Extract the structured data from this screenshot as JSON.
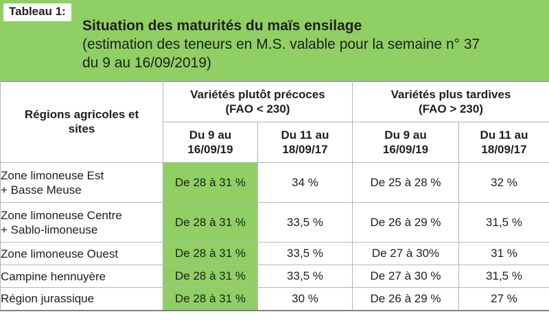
{
  "tab_label": "Tableau 1:",
  "title": "Situation des maturités du maïs ensilage",
  "subtitle_lines": [
    "(estimation des teneurs en M.S. valable pour la semaine n° 37",
    "du 9 au 16/09/2019)"
  ],
  "table": {
    "region_header_lines": [
      "Régions agricoles et",
      "sites"
    ],
    "groups": [
      {
        "lines": [
          "Variétés plutôt précoces",
          "(FAO < 230)"
        ]
      },
      {
        "lines": [
          "Variétés plus tardives",
          "(FAO > 230)"
        ]
      }
    ],
    "period_headers": [
      [
        "Du 9 au",
        "16/09/19"
      ],
      [
        "Du 11 au",
        "18/09/17"
      ],
      [
        "Du 9 au",
        "16/09/19"
      ],
      [
        "Du 11 au",
        "18/09/17"
      ]
    ],
    "rows": [
      {
        "region_lines": [
          "Zone limoneuse Est",
          "+ Basse Meuse"
        ],
        "values": [
          "De 28 à 31 %",
          "34 %",
          "De 25 à 28 %",
          "32 %"
        ]
      },
      {
        "region_lines": [
          "Zone limoneuse Centre",
          "+ Sablo-limoneuse"
        ],
        "values": [
          "De 28 à 31 %",
          "33,5 %",
          "De 26 à 29 %",
          "31,5 %"
        ]
      },
      {
        "region_lines": [
          "Zone limoneuse Ouest"
        ],
        "values": [
          "De 28 à 31 %",
          "33,5 %",
          "De 27 à 30%",
          "31 %"
        ]
      },
      {
        "region_lines": [
          "Campine hennuyère"
        ],
        "values": [
          "De 28 à 31 %",
          "33,5 %",
          "De 27 à 30 %",
          "31,5 %"
        ]
      },
      {
        "region_lines": [
          "Région jurassique"
        ],
        "values": [
          "De 28 à 31 %",
          "30 %",
          "De 26 à 29 %",
          "27 %"
        ]
      }
    ]
  },
  "colors": {
    "accent_green": "#8fcf63",
    "grid_line": "#b5b5b5",
    "text": "#1e1e1e"
  }
}
